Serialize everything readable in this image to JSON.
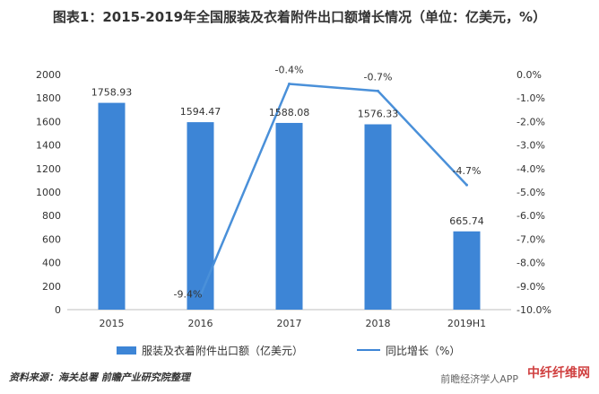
{
  "title": "图表1：2015-2019年全国服装及衣着附件出口额增长情况（单位：亿美元，%）",
  "source": "资料来源：海关总署  前瞻产业研究院整理",
  "watermark_brand": "中纤纤维网",
  "watermark_app": "前瞻经济学人APP",
  "colors": {
    "bar": "#3d85d6",
    "line": "#4a90d9"
  },
  "chart_data": {
    "type": "bar",
    "categories": [
      "2015",
      "2016",
      "2017",
      "2018",
      "2019H1"
    ],
    "series": [
      {
        "name": "服装及衣着附件出口额（亿美元）",
        "type": "bar",
        "axis": "left",
        "values": [
          1758.93,
          1594.47,
          1588.08,
          1576.33,
          665.74
        ],
        "labels": [
          "1758.93",
          "1594.47",
          "1588.08",
          "1576.33",
          "665.74"
        ]
      },
      {
        "name": "同比增长（%）",
        "type": "line",
        "axis": "right",
        "x": [
          "2016",
          "2017",
          "2018",
          "2019H1"
        ],
        "values": [
          -9.4,
          -0.4,
          -0.7,
          -4.7
        ],
        "labels": [
          "-9.4%",
          "-0.4%",
          "-0.7%",
          "-4.7%"
        ]
      }
    ],
    "y_left": {
      "min": 0,
      "max": 2000,
      "step": 200,
      "ticks": [
        "0",
        "200",
        "400",
        "600",
        "800",
        "1000",
        "1200",
        "1400",
        "1600",
        "1800",
        "2000"
      ]
    },
    "y_right": {
      "min": -10,
      "max": 0,
      "step": 1,
      "ticks": [
        "0.0%",
        "-1.0%",
        "-2.0%",
        "-3.0%",
        "-4.0%",
        "-5.0%",
        "-6.0%",
        "-7.0%",
        "-8.0%",
        "-9.0%",
        "-10.0%"
      ]
    },
    "legend_position": "bottom",
    "grid": false
  }
}
